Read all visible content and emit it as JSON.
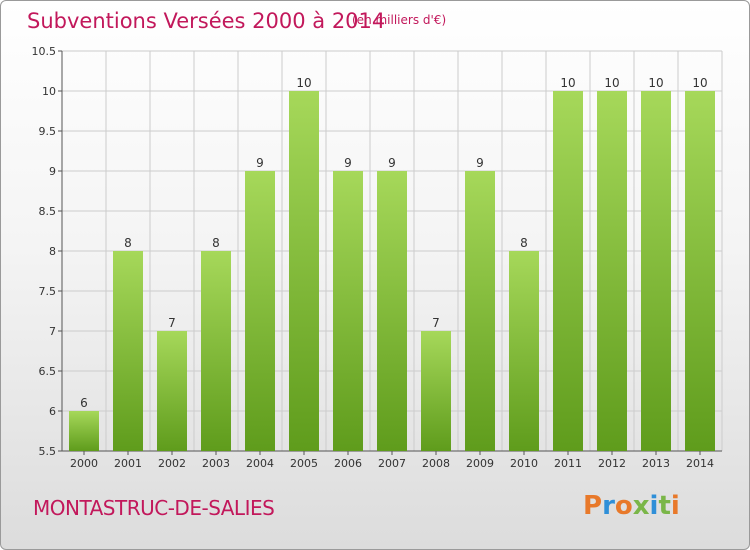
{
  "header": {
    "title": "Subventions Versées 2000 à 2014",
    "subtitle": "(en milliers d'€)"
  },
  "footer": {
    "commune": "MONTASTRUC-DE-SALIES",
    "logo_text": "Proxiti"
  },
  "colors": {
    "title": "#c2185b",
    "bar_top": "#a6d85a",
    "bar_bottom": "#5f9c1c",
    "grid": "#cccccc",
    "logo_letters": [
      "#e8792a",
      "#2f8fd8",
      "#e8792a",
      "#7ab648",
      "#2f8fd8",
      "#7ab648",
      "#e8792a"
    ]
  },
  "chart_data": {
    "type": "bar",
    "title": "Subventions Versées 2000 à 2014",
    "subtitle": "(en milliers d'€)",
    "xlabel": "",
    "ylabel": "",
    "categories": [
      "2000",
      "2001",
      "2002",
      "2003",
      "2004",
      "2005",
      "2006",
      "2007",
      "2008",
      "2009",
      "2010",
      "2011",
      "2012",
      "2013",
      "2014"
    ],
    "values": [
      6,
      8,
      7,
      8,
      9,
      10,
      9,
      9,
      7,
      9,
      8,
      10,
      10,
      10,
      10
    ],
    "data_labels": [
      "6",
      "8",
      "7",
      "8",
      "9",
      "10",
      "9",
      "9",
      "7",
      "9",
      "8",
      "10",
      "10",
      "10",
      "10"
    ],
    "ylim": [
      5.5,
      10.5
    ],
    "yticks": [
      5.5,
      6,
      6.5,
      7,
      7.5,
      8,
      8.5,
      9,
      9.5,
      10,
      10.5
    ],
    "ytick_labels": [
      "5.5",
      "6",
      "6.5",
      "7",
      "7.5",
      "8",
      "8.5",
      "9",
      "9.5",
      "10",
      "10.5"
    ],
    "grid": true,
    "legend": "none"
  }
}
